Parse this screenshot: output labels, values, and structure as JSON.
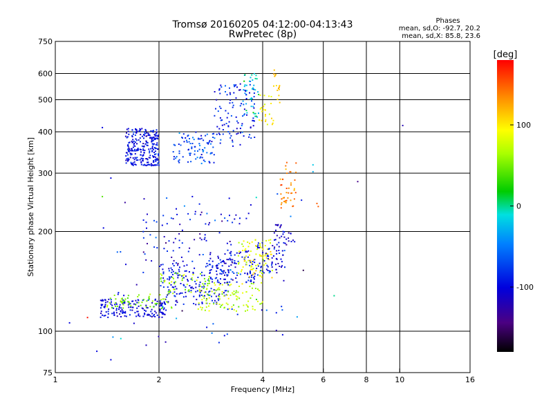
{
  "chart_data": {
    "type": "scatter",
    "title": "Tromsø 20160205 04:12:00-04:13:43",
    "subtitle": "RwPretec (8p)",
    "xlabel": "Frequency [MHz]",
    "ylabel": "Stationary phase Virtual Height [km]",
    "x_scale": "log",
    "y_scale": "log",
    "xlim": [
      1,
      16
    ],
    "ylim": [
      75,
      750
    ],
    "grid": true,
    "x_ticks": [
      {
        "value": 1,
        "label": "1"
      },
      {
        "value": 2,
        "label": "2"
      },
      {
        "value": 4,
        "label": "4"
      },
      {
        "value": 6,
        "label": "6"
      },
      {
        "value": 8,
        "label": "8"
      },
      {
        "value": 10,
        "label": "10"
      },
      {
        "value": 16,
        "label": "16"
      }
    ],
    "y_ticks": [
      {
        "value": 75,
        "label": "75"
      },
      {
        "value": 100,
        "label": "100"
      },
      {
        "value": 200,
        "label": "200"
      },
      {
        "value": 300,
        "label": "300"
      },
      {
        "value": 400,
        "label": "400"
      },
      {
        "value": 500,
        "label": "500"
      },
      {
        "value": 600,
        "label": "600"
      },
      {
        "value": 750,
        "label": "750"
      }
    ],
    "stats": {
      "title": "Phases",
      "line1": "mean, sd,O: -92.7, 20.2",
      "line2": "mean, sd,X:  85.8, 23.6"
    },
    "colorbar": {
      "label": "[deg]",
      "range": [
        -180,
        180
      ],
      "ticks": [
        {
          "value": 100,
          "label": "100"
        },
        {
          "value": 0,
          "label": "0"
        },
        {
          "value": -100,
          "label": "-100"
        }
      ]
    },
    "series": [
      {
        "clusters": [
          {
            "x": [
              1.6,
              2.0
            ],
            "y": [
              315,
              410
            ],
            "n": 260,
            "phase": -95,
            "spread": 18
          },
          {
            "x": [
              2.2,
              2.9
            ],
            "y": [
              320,
              400
            ],
            "n": 90,
            "phase": -70,
            "spread": 25
          },
          {
            "x": [
              2.9,
              3.8
            ],
            "y": [
              360,
              560
            ],
            "n": 110,
            "phase": -85,
            "spread": 25
          },
          {
            "x": [
              3.5,
              3.9
            ],
            "y": [
              440,
              600
            ],
            "n": 40,
            "phase": -10,
            "spread": 30
          },
          {
            "x": [
              3.9,
              4.3
            ],
            "y": [
              420,
              520
            ],
            "n": 25,
            "phase": 100,
            "spread": 15
          },
          {
            "x": [
              4.3,
              4.5
            ],
            "y": [
              480,
              620
            ],
            "n": 15,
            "phase": 115,
            "spread": 10
          },
          {
            "x": [
              1.35,
              2.1
            ],
            "y": [
              110,
              125
            ],
            "n": 160,
            "phase": -100,
            "spread": 15
          },
          {
            "x": [
              1.4,
              2.2
            ],
            "y": [
              117,
              130
            ],
            "n": 60,
            "phase": 55,
            "spread": 15
          },
          {
            "x": [
              2.0,
              3.2
            ],
            "y": [
              120,
              160
            ],
            "n": 170,
            "phase": -95,
            "spread": 20
          },
          {
            "x": [
              2.0,
              2.8
            ],
            "y": [
              130,
              150
            ],
            "n": 50,
            "phase": 60,
            "spread": 20
          },
          {
            "x": [
              2.6,
              4.0
            ],
            "y": [
              115,
              140
            ],
            "n": 110,
            "phase": 70,
            "spread": 20
          },
          {
            "x": [
              2.8,
              3.8
            ],
            "y": [
              140,
              175
            ],
            "n": 110,
            "phase": -95,
            "spread": 20
          },
          {
            "x": [
              3.4,
              4.3
            ],
            "y": [
              145,
              190
            ],
            "n": 90,
            "phase": 90,
            "spread": 20
          },
          {
            "x": [
              3.8,
              4.6
            ],
            "y": [
              150,
              185
            ],
            "n": 60,
            "phase": -100,
            "spread": 20
          },
          {
            "x": [
              4.3,
              5.0
            ],
            "y": [
              180,
              210
            ],
            "n": 30,
            "phase": -110,
            "spread": 20
          },
          {
            "x": [
              4.5,
              5.0
            ],
            "y": [
              230,
              320
            ],
            "n": 40,
            "phase": 140,
            "spread": 20
          },
          {
            "x": [
              1.8,
              3.5
            ],
            "y": [
              160,
              230
            ],
            "n": 80,
            "phase": -100,
            "spread": 30
          },
          {
            "x": [
              1.5,
              5.5
            ],
            "y": [
              90,
              260
            ],
            "n": 70,
            "phase": -90,
            "spread": 50
          }
        ],
        "points": [
          {
            "x": 1.37,
            "y": 412,
            "phase": -100
          },
          {
            "x": 1.45,
            "y": 290,
            "phase": -100
          },
          {
            "x": 1.37,
            "y": 255,
            "phase": 40
          },
          {
            "x": 1.38,
            "y": 205,
            "phase": -100
          },
          {
            "x": 1.47,
            "y": 96,
            "phase": -40
          },
          {
            "x": 1.24,
            "y": 110,
            "phase": 175
          },
          {
            "x": 1.32,
            "y": 87,
            "phase": -100
          },
          {
            "x": 1.45,
            "y": 82,
            "phase": -100
          },
          {
            "x": 1.1,
            "y": 106,
            "phase": -100
          },
          {
            "x": 1.55,
            "y": 95,
            "phase": -10
          },
          {
            "x": 7.55,
            "y": 283,
            "phase": -140
          },
          {
            "x": 10.2,
            "y": 418,
            "phase": -120
          },
          {
            "x": 6.45,
            "y": 128,
            "phase": 0
          },
          {
            "x": 5.8,
            "y": 238,
            "phase": 150
          },
          {
            "x": 5.75,
            "y": 243,
            "phase": 150
          },
          {
            "x": 5.6,
            "y": 318,
            "phase": -20
          },
          {
            "x": 5.6,
            "y": 303,
            "phase": -30
          },
          {
            "x": 4.7,
            "y": 323,
            "phase": 150
          },
          {
            "x": 5.0,
            "y": 322,
            "phase": 150
          },
          {
            "x": 3.1,
            "y": 97,
            "phase": -100
          },
          {
            "x": 2.5,
            "y": 255,
            "phase": -100
          },
          {
            "x": 3.2,
            "y": 252,
            "phase": -100
          }
        ]
      }
    ]
  }
}
